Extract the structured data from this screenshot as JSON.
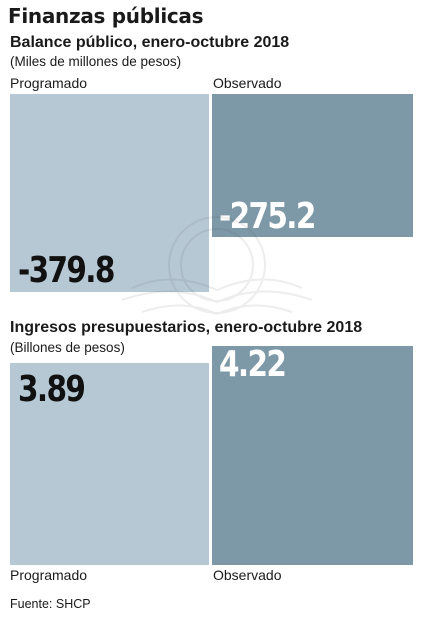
{
  "title": "Finanzas públicas",
  "colors": {
    "programado": "#b6c8d4",
    "observado": "#7d98a7"
  },
  "charts": [
    {
      "title": "Balance público, enero-octubre 2018",
      "subtitle": "(Miles de millones de pesos)",
      "labels": {
        "programado": "Programado",
        "observado": "Observado"
      },
      "values": {
        "programado": "-379.8",
        "observado": "-275.2"
      }
    },
    {
      "title": "Ingresos presupuestarios, enero-octubre 2018",
      "subtitle": "(Billones de pesos)",
      "labels": {
        "programado": "Programado",
        "observado": "Observado"
      },
      "values": {
        "programado": "3.89",
        "observado": "4.22"
      }
    }
  ],
  "source": "Fuente: SHCP",
  "chart_data": [
    {
      "type": "bar",
      "title": "Balance público, enero-octubre 2018",
      "subtitle": "(Miles de millones de pesos)",
      "categories": [
        "Programado",
        "Observado"
      ],
      "values": [
        -379.8,
        -275.2
      ]
    },
    {
      "type": "bar",
      "title": "Ingresos presupuestarios, enero-octubre 2018",
      "subtitle": "(Billones de pesos)",
      "categories": [
        "Programado",
        "Observado"
      ],
      "values": [
        3.89,
        4.22
      ]
    }
  ]
}
